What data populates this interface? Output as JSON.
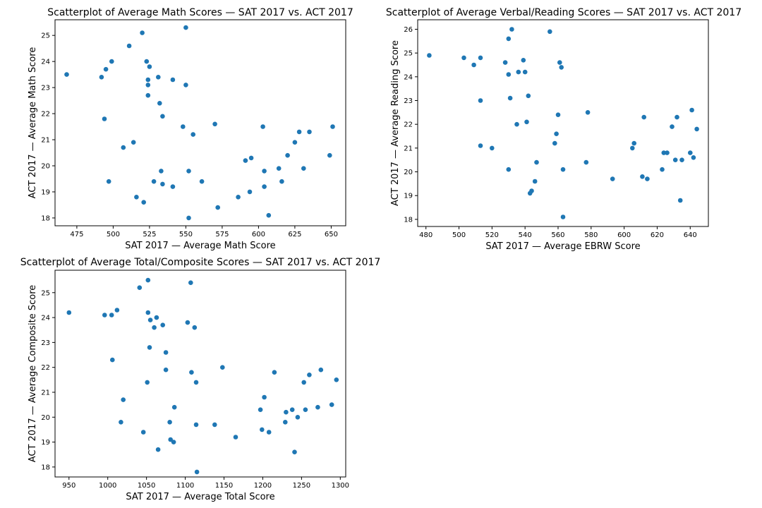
{
  "chart_data": [
    {
      "type": "scatter",
      "title": "Scatterplot of Average Math Scores — SAT 2017 vs. ACT 2017",
      "xlabel": "SAT 2017 — Average Math Score",
      "ylabel": "ACT 2017 — Average Math Score",
      "xlim": [
        460,
        660
      ],
      "ylim": [
        17.7,
        25.6
      ],
      "xticks": [
        475,
        500,
        525,
        550,
        575,
        600,
        625,
        650
      ],
      "yticks": [
        18,
        19,
        20,
        21,
        22,
        23,
        24,
        25
      ],
      "grid": false,
      "color": "#1f77b4",
      "points": [
        [
          468,
          23.5
        ],
        [
          492,
          23.4
        ],
        [
          494,
          21.8
        ],
        [
          495,
          23.7
        ],
        [
          497,
          19.4
        ],
        [
          499,
          24.0
        ],
        [
          507,
          20.7
        ],
        [
          511,
          24.6
        ],
        [
          514,
          20.9
        ],
        [
          516,
          18.8
        ],
        [
          520,
          25.1
        ],
        [
          521,
          18.6
        ],
        [
          523,
          24.0
        ],
        [
          524,
          23.3
        ],
        [
          524,
          23.1
        ],
        [
          524,
          22.7
        ],
        [
          525,
          23.8
        ],
        [
          528,
          19.4
        ],
        [
          531,
          23.4
        ],
        [
          532,
          22.4
        ],
        [
          533,
          19.8
        ],
        [
          534,
          21.9
        ],
        [
          534,
          19.3
        ],
        [
          541,
          23.3
        ],
        [
          541,
          19.2
        ],
        [
          548,
          21.5
        ],
        [
          550,
          23.1
        ],
        [
          550,
          25.3
        ],
        [
          552,
          19.8
        ],
        [
          552,
          18.0
        ],
        [
          555,
          21.2
        ],
        [
          561,
          19.4
        ],
        [
          570,
          21.6
        ],
        [
          572,
          18.4
        ],
        [
          586,
          18.8
        ],
        [
          591,
          20.2
        ],
        [
          594,
          19.0
        ],
        [
          595,
          20.3
        ],
        [
          603,
          21.5
        ],
        [
          604,
          19.8
        ],
        [
          604,
          19.2
        ],
        [
          607,
          18.1
        ],
        [
          614,
          19.9
        ],
        [
          616,
          19.4
        ],
        [
          620,
          20.4
        ],
        [
          625,
          20.9
        ],
        [
          628,
          21.3
        ],
        [
          631,
          19.9
        ],
        [
          635,
          21.3
        ],
        [
          649,
          20.4
        ],
        [
          651,
          21.5
        ]
      ]
    },
    {
      "type": "scatter",
      "title": "Scatterplot of Average Verbal/Reading Scores — SAT 2017 vs. ACT 2017",
      "xlabel": "SAT 2017 — Average EBRW Score",
      "ylabel": "ACT 2017 — Average Reading Score",
      "xlim": [
        475,
        651
      ],
      "ylim": [
        17.7,
        26.4
      ],
      "xticks": [
        480,
        500,
        520,
        540,
        560,
        580,
        600,
        620,
        640
      ],
      "yticks": [
        18,
        19,
        20,
        21,
        22,
        23,
        24,
        25,
        26
      ],
      "grid": false,
      "color": "#1f77b4",
      "points": [
        [
          482,
          24.9
        ],
        [
          503,
          24.8
        ],
        [
          509,
          24.5
        ],
        [
          513,
          24.8
        ],
        [
          513,
          23.0
        ],
        [
          513,
          21.1
        ],
        [
          520,
          21.0
        ],
        [
          528,
          24.6
        ],
        [
          530,
          25.6
        ],
        [
          530,
          24.1
        ],
        [
          530,
          20.1
        ],
        [
          531,
          23.1
        ],
        [
          532,
          26.0
        ],
        [
          535,
          22.0
        ],
        [
          536,
          24.2
        ],
        [
          539,
          24.7
        ],
        [
          540,
          24.2
        ],
        [
          541,
          22.1
        ],
        [
          542,
          23.2
        ],
        [
          543,
          19.1
        ],
        [
          544,
          19.2
        ],
        [
          546,
          19.6
        ],
        [
          547,
          20.4
        ],
        [
          555,
          25.9
        ],
        [
          558,
          21.2
        ],
        [
          559,
          21.6
        ],
        [
          560,
          22.4
        ],
        [
          561,
          24.6
        ],
        [
          562,
          24.4
        ],
        [
          563,
          20.1
        ],
        [
          563,
          18.1
        ],
        [
          577,
          20.4
        ],
        [
          578,
          22.5
        ],
        [
          593,
          19.7
        ],
        [
          605,
          21.0
        ],
        [
          606,
          21.2
        ],
        [
          611,
          19.8
        ],
        [
          612,
          22.3
        ],
        [
          614,
          19.7
        ],
        [
          623,
          20.1
        ],
        [
          624,
          20.8
        ],
        [
          626,
          20.8
        ],
        [
          629,
          21.9
        ],
        [
          631,
          20.5
        ],
        [
          632,
          22.3
        ],
        [
          634,
          18.8
        ],
        [
          635,
          20.5
        ],
        [
          640,
          20.8
        ],
        [
          641,
          22.6
        ],
        [
          642,
          20.6
        ],
        [
          644,
          21.8
        ]
      ]
    },
    {
      "type": "scatter",
      "title": "Scatterplot of Average Total/Composite Scores — SAT 2017 vs. ACT 2017",
      "xlabel": "SAT 2017 — Average Total Score",
      "ylabel": "ACT 2017 — Average Composite Score",
      "xlim": [
        932,
        1307
      ],
      "ylim": [
        17.6,
        25.9
      ],
      "xticks": [
        950,
        1000,
        1050,
        1100,
        1150,
        1200,
        1250,
        1300
      ],
      "yticks": [
        18,
        19,
        20,
        21,
        22,
        23,
        24,
        25
      ],
      "grid": false,
      "color": "#1f77b4",
      "points": [
        [
          950,
          24.2
        ],
        [
          996,
          24.1
        ],
        [
          1005,
          24.1
        ],
        [
          1006,
          22.3
        ],
        [
          1012,
          24.3
        ],
        [
          1017,
          19.8
        ],
        [
          1020,
          20.7
        ],
        [
          1041,
          25.2
        ],
        [
          1046,
          19.4
        ],
        [
          1051,
          21.4
        ],
        [
          1052,
          25.5
        ],
        [
          1052,
          24.2
        ],
        [
          1054,
          22.8
        ],
        [
          1055,
          23.9
        ],
        [
          1060,
          23.6
        ],
        [
          1063,
          24.0
        ],
        [
          1065,
          18.7
        ],
        [
          1071,
          23.7
        ],
        [
          1075,
          22.6
        ],
        [
          1075,
          21.9
        ],
        [
          1080,
          19.8
        ],
        [
          1081,
          19.1
        ],
        [
          1085,
          19.0
        ],
        [
          1086,
          20.4
        ],
        [
          1103,
          23.8
        ],
        [
          1107,
          25.4
        ],
        [
          1108,
          21.8
        ],
        [
          1112,
          23.6
        ],
        [
          1114,
          21.4
        ],
        [
          1114,
          19.7
        ],
        [
          1115,
          17.8
        ],
        [
          1138,
          19.7
        ],
        [
          1148,
          22.0
        ],
        [
          1165,
          19.2
        ],
        [
          1197,
          20.3
        ],
        [
          1199,
          19.5
        ],
        [
          1202,
          20.8
        ],
        [
          1208,
          19.4
        ],
        [
          1215,
          21.8
        ],
        [
          1229,
          19.8
        ],
        [
          1230,
          20.2
        ],
        [
          1238,
          20.3
        ],
        [
          1241,
          18.6
        ],
        [
          1245,
          20.0
        ],
        [
          1253,
          21.4
        ],
        [
          1255,
          20.3
        ],
        [
          1260,
          21.7
        ],
        [
          1271,
          20.4
        ],
        [
          1275,
          21.9
        ],
        [
          1289,
          20.5
        ],
        [
          1295,
          21.5
        ]
      ]
    }
  ]
}
